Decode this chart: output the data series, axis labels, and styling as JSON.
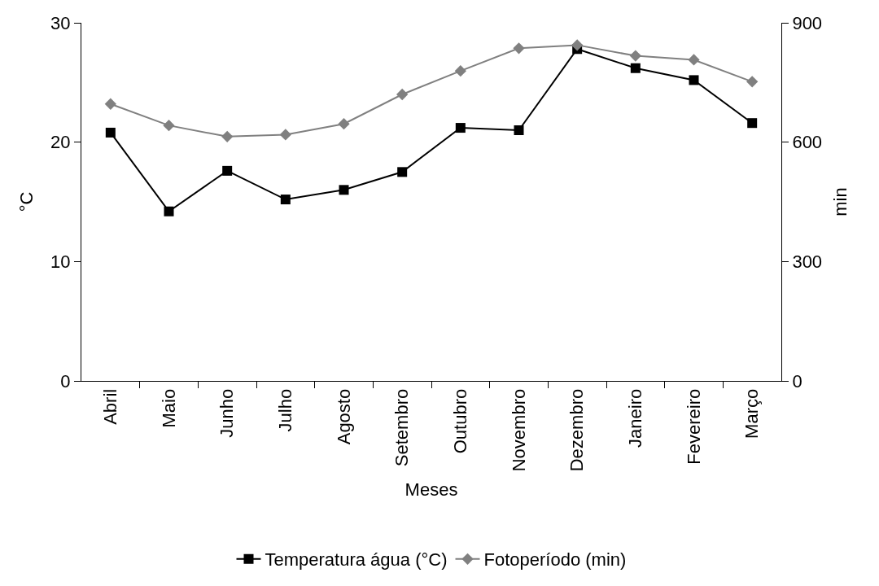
{
  "chart_data": {
    "type": "line",
    "xlabel": "Meses",
    "ylabel": "°C",
    "y2label": "min",
    "categories": [
      "Abril",
      "Maio",
      "Junho",
      "Julho",
      "Agosto",
      "Setembro",
      "Outubro",
      "Novembro",
      "Dezembro",
      "Janeiro",
      "Fevereiro",
      "Março"
    ],
    "series": [
      {
        "name": "Temperatura água (°C)",
        "color": "#000000",
        "marker": "square",
        "values": [
          20.8,
          14.2,
          17.6,
          15.2,
          16.0,
          17.5,
          21.2,
          21.0,
          27.8,
          26.2,
          25.2,
          21.6
        ]
      },
      {
        "name": "Fotoperíodo (min)",
        "color": "#808080",
        "marker": "diamond",
        "axis": "y2",
        "values": [
          696,
          642,
          614,
          619,
          646,
          720,
          779,
          836,
          844,
          817,
          807,
          752
        ]
      }
    ],
    "ylim": [
      0,
      30
    ],
    "yticks": [
      0,
      10,
      20,
      30
    ],
    "y2lim": [
      0,
      900
    ],
    "y2ticks": [
      0,
      300,
      600,
      900
    ],
    "legend": "bottom",
    "line_style": "solid"
  }
}
